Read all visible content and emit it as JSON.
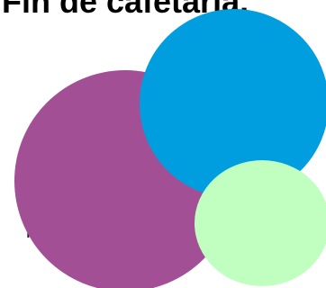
{
  "slide": {
    "title": "Fin de cafetaria.",
    "body_fragment": "le"
  },
  "colors": {
    "background": "#ffffff",
    "purple_circle": "#a34f95",
    "blue_circle": "#009edf",
    "green_circle": "#c0ffbf"
  }
}
